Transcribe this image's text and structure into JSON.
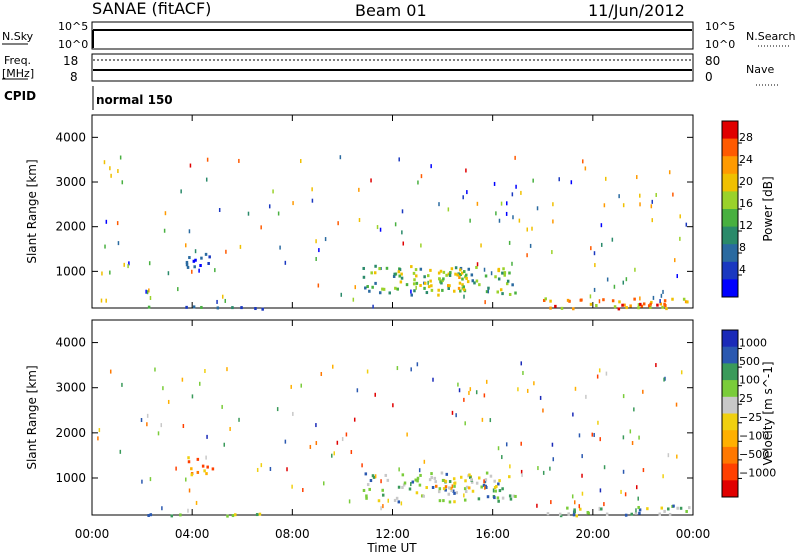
{
  "header": {
    "station": "SANAE (fitACF)",
    "beam": "Beam 01",
    "date": "11/Jun/2012"
  },
  "sky_panel": {
    "left_label": "N.Sky",
    "left_ticks": [
      "10^5",
      "10^0"
    ],
    "right_ticks": [
      "10^5",
      "10^0"
    ],
    "right_label": "N.Search"
  },
  "freq_panel": {
    "left_label_1": "Freq.",
    "left_label_2": "[MHz]",
    "left_ticks": [
      "18",
      "8"
    ],
    "right_ticks": [
      "80",
      "0"
    ],
    "right_label": "Nave"
  },
  "cpid": {
    "label": "CPID",
    "mode": "normal 150"
  },
  "xaxis": {
    "label": "Time UT",
    "ticks": [
      "00:00",
      "04:00",
      "08:00",
      "12:00",
      "16:00",
      "20:00",
      "00:00"
    ],
    "hours": [
      0,
      4,
      8,
      12,
      16,
      20,
      24
    ]
  },
  "chart_data": [
    {
      "type": "heatmap",
      "ylabel": "Slant Range [km]",
      "xlabel": "Time UT",
      "xlim": [
        0,
        24
      ],
      "ylim": [
        180,
        4500
      ],
      "yticks": [
        1000,
        2000,
        3000,
        4000
      ],
      "colorbar": {
        "label": "Power [dB]",
        "ticks": [
          "28",
          "24",
          "20",
          "16",
          "12",
          "8",
          "4"
        ],
        "colors": [
          "#e00000",
          "#ff5a00",
          "#ff9a00",
          "#f0c000",
          "#9ad22a",
          "#48b040",
          "#2a8a6a",
          "#2a6aa0",
          "#1a38c0",
          "#0000ff"
        ]
      },
      "patches": [
        {
          "t0": 10.8,
          "t1": 16.9,
          "r0": 500,
          "r1": 1150,
          "level": 0.45
        },
        {
          "t0": 13.0,
          "t1": 15.0,
          "r0": 600,
          "r1": 1100,
          "level": 0.6
        },
        {
          "t0": 18.0,
          "t1": 23.9,
          "r0": 190,
          "r1": 420,
          "level": 0.75
        },
        {
          "t0": 20.5,
          "t1": 23.0,
          "r0": 190,
          "r1": 330,
          "level": 0.95
        },
        {
          "t0": 3.6,
          "t1": 4.8,
          "r0": 1100,
          "r1": 1500,
          "level": 0.2
        },
        {
          "t0": 0.2,
          "t1": 6.8,
          "r0": 185,
          "r1": 240,
          "level": 0.3
        }
      ]
    },
    {
      "type": "heatmap",
      "ylabel": "Slant Range [km]",
      "xlabel": "Time UT",
      "xlim": [
        0,
        24
      ],
      "ylim": [
        180,
        4500
      ],
      "yticks": [
        1000,
        2000,
        3000,
        4000
      ],
      "colorbar": {
        "label": "Velocity [m s^-1]",
        "ticks": [
          "1000",
          "500",
          "100",
          "25",
          "−25",
          "−100",
          "−500",
          "−1000"
        ],
        "colors": [
          "#1a2ab8",
          "#2a58b0",
          "#3a9a5a",
          "#7acc3a",
          "#c8c8c8",
          "#f0d010",
          "#ffb000",
          "#ff7800",
          "#ff4000",
          "#e00000"
        ]
      },
      "patches": [
        {
          "t0": 10.8,
          "t1": 16.9,
          "r0": 500,
          "r1": 1150,
          "level": 0.65
        },
        {
          "t0": 13.5,
          "t1": 15.2,
          "r0": 700,
          "r1": 1050,
          "level": 0.4
        },
        {
          "t0": 18.0,
          "t1": 23.9,
          "r0": 190,
          "r1": 420,
          "level": 0.7
        },
        {
          "t0": 3.6,
          "t1": 4.8,
          "r0": 1100,
          "r1": 1500,
          "level": 0.3
        },
        {
          "t0": 0.2,
          "t1": 6.8,
          "r0": 185,
          "r1": 240,
          "level": 0.6
        }
      ]
    }
  ]
}
